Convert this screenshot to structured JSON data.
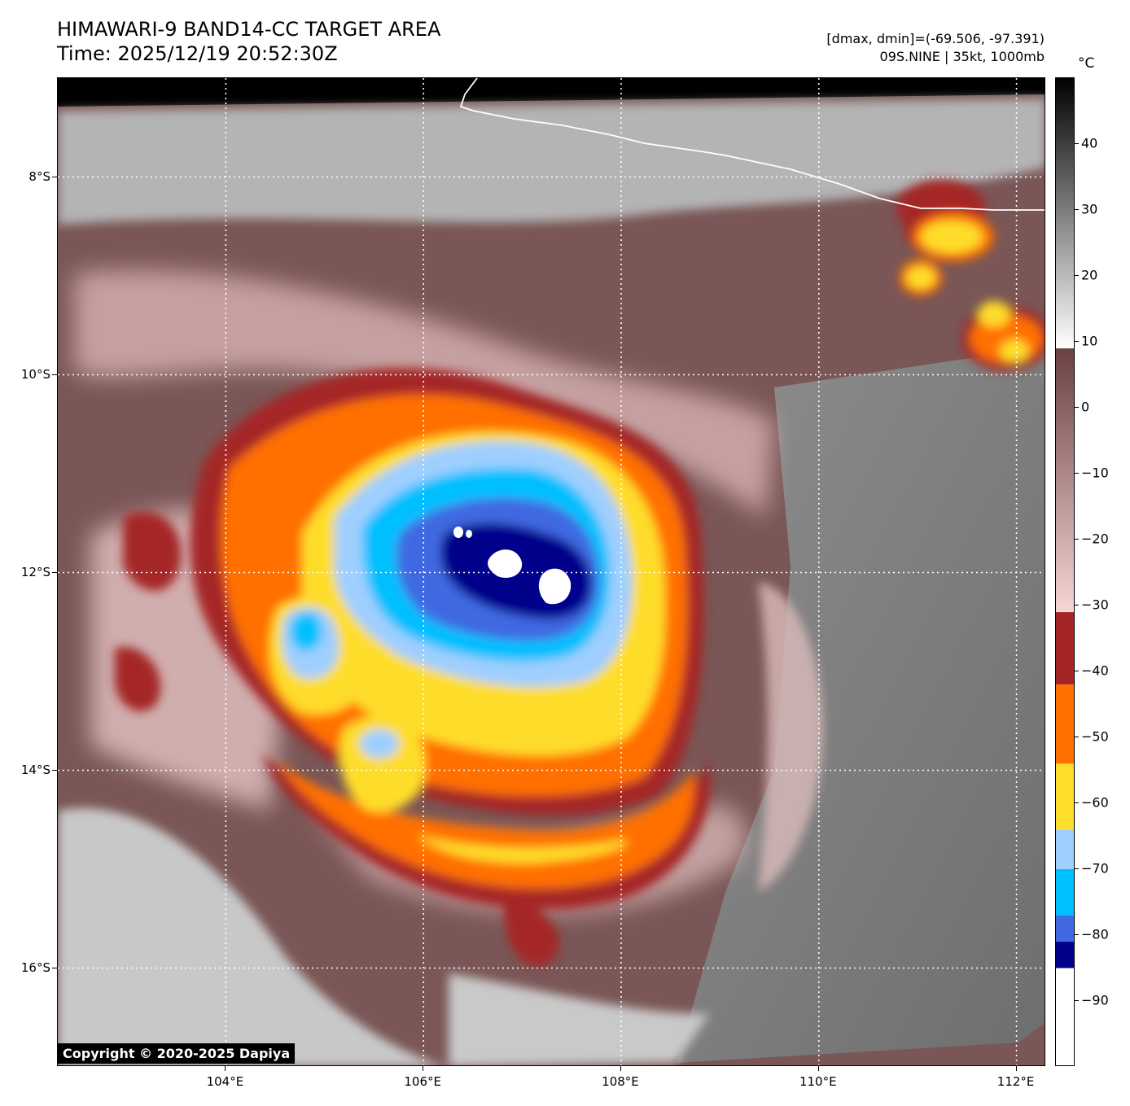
{
  "header": {
    "title_line1": "HIMAWARI-9 BAND14-CC TARGET AREA",
    "title_line2": "Time: 2025/12/19 20:52:30Z",
    "range_text": "[dmax, dmin]=(-69.506, -97.391)",
    "storm_text": "09S.NINE | 35kt, 1000mb"
  },
  "map": {
    "lon_ticks": [
      "104°E",
      "106°E",
      "108°E",
      "110°E",
      "112°E"
    ],
    "lat_ticks": [
      "8°S",
      "10°S",
      "12°S",
      "14°S",
      "16°S"
    ],
    "lon_values": [
      104,
      106,
      108,
      110,
      112
    ],
    "lat_values": [
      -8,
      -10,
      -12,
      -14,
      -16
    ],
    "lon_range": [
      102.3,
      112.3
    ],
    "lat_range": [
      -7.0,
      -17.0
    ],
    "gridlines": true,
    "storm_center": {
      "lon": 106.9,
      "lat": -11.95
    }
  },
  "colorbar": {
    "unit": "°C",
    "tick_labels": [
      "40",
      "30",
      "20",
      "10",
      "0",
      "−10",
      "−20",
      "−30",
      "−40",
      "−50",
      "−60",
      "−70",
      "−80",
      "−90"
    ],
    "tick_values": [
      40,
      30,
      20,
      10,
      0,
      -10,
      -20,
      -30,
      -40,
      -50,
      -60,
      -70,
      -80,
      -90
    ],
    "range": [
      -100,
      50
    ],
    "segments": [
      {
        "from": 50,
        "to": 9,
        "color_top": "#000000",
        "color_bottom": "#ffffff",
        "kind": "gray-gradient"
      },
      {
        "from": 9,
        "to": -31,
        "color_top": "#6a4040",
        "color_bottom": "#f6d6d6",
        "kind": "brown-pink-gradient"
      },
      {
        "from": -31,
        "to": -42,
        "color": "#a52525"
      },
      {
        "from": -42,
        "to": -54,
        "color": "#ff6f00"
      },
      {
        "from": -54,
        "to": -64,
        "color": "#fedd2b"
      },
      {
        "from": -64,
        "to": -70,
        "color": "#9fcfff"
      },
      {
        "from": -70,
        "to": -77,
        "color": "#00bfff"
      },
      {
        "from": -77,
        "to": -81,
        "color": "#4169e1"
      },
      {
        "from": -81,
        "to": -85,
        "color": "#00008b"
      },
      {
        "from": -85,
        "to": -100,
        "color": "#ffffff"
      }
    ]
  },
  "copyright": "Copyright © 2020-2025 Dapiya"
}
